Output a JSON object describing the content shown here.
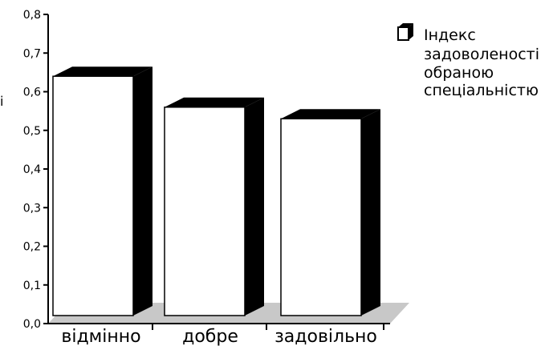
{
  "chart_data": {
    "type": "bar",
    "categories": [
      "відмінно",
      "добре",
      "задовільно"
    ],
    "series": [
      {
        "name": "Індекс задоволеності обраною спеціальністю",
        "values": [
          0.64,
          0.56,
          0.53
        ]
      }
    ],
    "ylim": [
      0,
      0.8
    ],
    "yticks": [
      "0,0",
      "0,1",
      "0,2",
      "0,3",
      "0,4",
      "0,5",
      "0,6",
      "0,7",
      "0,8"
    ],
    "ylabel": "і",
    "grid": false,
    "legend": "top-right",
    "bar_style": "3d",
    "colors": {
      "bar_front": "#ffffff",
      "bar_side": "#000000",
      "floor": "#c8c8c8",
      "axis": "#000000"
    }
  },
  "legend": {
    "lines": [
      "Індекс",
      "задоволеності",
      "обраною",
      "спеціальністю"
    ]
  }
}
